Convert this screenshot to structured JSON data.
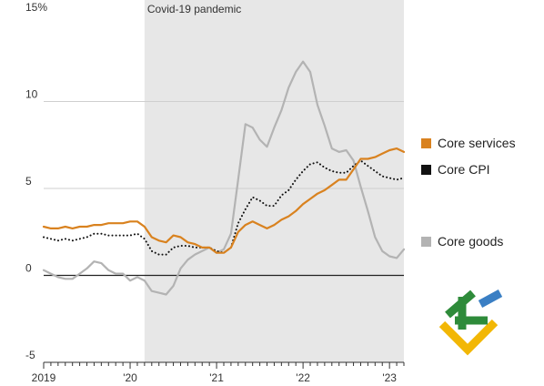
{
  "chart_data": {
    "type": "line",
    "title": "",
    "xlabel": "",
    "ylabel": "",
    "y_unit": "%",
    "ylim": [
      -5,
      15
    ],
    "y_ticks": [
      {
        "value": 15,
        "label": "15%"
      },
      {
        "value": 10,
        "label": "10"
      },
      {
        "value": 5,
        "label": "5"
      },
      {
        "value": 0,
        "label": "0"
      },
      {
        "value": -5,
        "label": "-5"
      }
    ],
    "xlim": [
      "2019-01",
      "2023-03"
    ],
    "x_ticks": [
      {
        "value": "2019-01",
        "label": "2019"
      },
      {
        "value": "2020-01",
        "label": "'20"
      },
      {
        "value": "2021-01",
        "label": "'21"
      },
      {
        "value": "2022-01",
        "label": "'22"
      },
      {
        "value": "2023-01",
        "label": "'23"
      }
    ],
    "annotations": [
      {
        "label": "Covid-19 pandemic",
        "from": "2020-03",
        "to": "2023-03",
        "color": "#e7e7e7"
      }
    ],
    "grid": true,
    "legend_position": "right",
    "series": [
      {
        "name": "Core services",
        "color": "#d9821f",
        "style": "solid",
        "points": [
          [
            "2019-01",
            2.8
          ],
          [
            "2019-02",
            2.7
          ],
          [
            "2019-03",
            2.7
          ],
          [
            "2019-04",
            2.8
          ],
          [
            "2019-05",
            2.7
          ],
          [
            "2019-06",
            2.8
          ],
          [
            "2019-07",
            2.8
          ],
          [
            "2019-08",
            2.9
          ],
          [
            "2019-09",
            2.9
          ],
          [
            "2019-10",
            3.0
          ],
          [
            "2019-11",
            3.0
          ],
          [
            "2019-12",
            3.0
          ],
          [
            "2020-01",
            3.1
          ],
          [
            "2020-02",
            3.1
          ],
          [
            "2020-03",
            2.8
          ],
          [
            "2020-04",
            2.2
          ],
          [
            "2020-05",
            2.0
          ],
          [
            "2020-06",
            1.9
          ],
          [
            "2020-07",
            2.3
          ],
          [
            "2020-08",
            2.2
          ],
          [
            "2020-09",
            1.9
          ],
          [
            "2020-10",
            1.8
          ],
          [
            "2020-11",
            1.6
          ],
          [
            "2020-12",
            1.6
          ],
          [
            "2021-01",
            1.3
          ],
          [
            "2021-02",
            1.3
          ],
          [
            "2021-03",
            1.6
          ],
          [
            "2021-04",
            2.5
          ],
          [
            "2021-05",
            2.9
          ],
          [
            "2021-06",
            3.1
          ],
          [
            "2021-07",
            2.9
          ],
          [
            "2021-08",
            2.7
          ],
          [
            "2021-09",
            2.9
          ],
          [
            "2021-10",
            3.2
          ],
          [
            "2021-11",
            3.4
          ],
          [
            "2021-12",
            3.7
          ],
          [
            "2022-01",
            4.1
          ],
          [
            "2022-02",
            4.4
          ],
          [
            "2022-03",
            4.7
          ],
          [
            "2022-04",
            4.9
          ],
          [
            "2022-05",
            5.2
          ],
          [
            "2022-06",
            5.5
          ],
          [
            "2022-07",
            5.5
          ],
          [
            "2022-08",
            6.1
          ],
          [
            "2022-09",
            6.7
          ],
          [
            "2022-10",
            6.7
          ],
          [
            "2022-11",
            6.8
          ],
          [
            "2022-12",
            7.0
          ],
          [
            "2023-01",
            7.2
          ],
          [
            "2023-02",
            7.3
          ],
          [
            "2023-03",
            7.1
          ]
        ]
      },
      {
        "name": "Core CPI",
        "color": "#111111",
        "style": "dotted",
        "points": [
          [
            "2019-01",
            2.2
          ],
          [
            "2019-02",
            2.1
          ],
          [
            "2019-03",
            2.0
          ],
          [
            "2019-04",
            2.1
          ],
          [
            "2019-05",
            2.0
          ],
          [
            "2019-06",
            2.1
          ],
          [
            "2019-07",
            2.2
          ],
          [
            "2019-08",
            2.4
          ],
          [
            "2019-09",
            2.4
          ],
          [
            "2019-10",
            2.3
          ],
          [
            "2019-11",
            2.3
          ],
          [
            "2019-12",
            2.3
          ],
          [
            "2020-01",
            2.3
          ],
          [
            "2020-02",
            2.4
          ],
          [
            "2020-03",
            2.1
          ],
          [
            "2020-04",
            1.4
          ],
          [
            "2020-05",
            1.2
          ],
          [
            "2020-06",
            1.2
          ],
          [
            "2020-07",
            1.6
          ],
          [
            "2020-08",
            1.7
          ],
          [
            "2020-09",
            1.7
          ],
          [
            "2020-10",
            1.6
          ],
          [
            "2020-11",
            1.6
          ],
          [
            "2020-12",
            1.6
          ],
          [
            "2021-01",
            1.4
          ],
          [
            "2021-02",
            1.3
          ],
          [
            "2021-03",
            1.6
          ],
          [
            "2021-04",
            3.0
          ],
          [
            "2021-05",
            3.8
          ],
          [
            "2021-06",
            4.5
          ],
          [
            "2021-07",
            4.3
          ],
          [
            "2021-08",
            4.0
          ],
          [
            "2021-09",
            4.0
          ],
          [
            "2021-10",
            4.6
          ],
          [
            "2021-11",
            4.9
          ],
          [
            "2021-12",
            5.5
          ],
          [
            "2022-01",
            6.0
          ],
          [
            "2022-02",
            6.4
          ],
          [
            "2022-03",
            6.5
          ],
          [
            "2022-04",
            6.2
          ],
          [
            "2022-05",
            6.0
          ],
          [
            "2022-06",
            5.9
          ],
          [
            "2022-07",
            5.9
          ],
          [
            "2022-08",
            6.3
          ],
          [
            "2022-09",
            6.6
          ],
          [
            "2022-10",
            6.3
          ],
          [
            "2022-11",
            6.0
          ],
          [
            "2022-12",
            5.7
          ],
          [
            "2023-01",
            5.6
          ],
          [
            "2023-02",
            5.5
          ],
          [
            "2023-03",
            5.6
          ]
        ]
      },
      {
        "name": "Core goods",
        "color": "#b3b3b3",
        "style": "solid",
        "points": [
          [
            "2019-01",
            0.3
          ],
          [
            "2019-02",
            0.1
          ],
          [
            "2019-03",
            -0.1
          ],
          [
            "2019-04",
            -0.2
          ],
          [
            "2019-05",
            -0.2
          ],
          [
            "2019-06",
            0.1
          ],
          [
            "2019-07",
            0.4
          ],
          [
            "2019-08",
            0.8
          ],
          [
            "2019-09",
            0.7
          ],
          [
            "2019-10",
            0.3
          ],
          [
            "2019-11",
            0.1
          ],
          [
            "2019-12",
            0.1
          ],
          [
            "2020-01",
            -0.3
          ],
          [
            "2020-02",
            -0.1
          ],
          [
            "2020-03",
            -0.3
          ],
          [
            "2020-04",
            -0.9
          ],
          [
            "2020-05",
            -1.0
          ],
          [
            "2020-06",
            -1.1
          ],
          [
            "2020-07",
            -0.6
          ],
          [
            "2020-08",
            0.4
          ],
          [
            "2020-09",
            0.9
          ],
          [
            "2020-10",
            1.2
          ],
          [
            "2020-11",
            1.4
          ],
          [
            "2020-12",
            1.6
          ],
          [
            "2021-01",
            1.3
          ],
          [
            "2021-02",
            1.5
          ],
          [
            "2021-03",
            2.4
          ],
          [
            "2021-04",
            5.5
          ],
          [
            "2021-05",
            8.7
          ],
          [
            "2021-06",
            8.5
          ],
          [
            "2021-07",
            7.8
          ],
          [
            "2021-08",
            7.4
          ],
          [
            "2021-09",
            8.5
          ],
          [
            "2021-10",
            9.5
          ],
          [
            "2021-11",
            10.8
          ],
          [
            "2021-12",
            11.7
          ],
          [
            "2022-01",
            12.3
          ],
          [
            "2022-02",
            11.7
          ],
          [
            "2022-03",
            9.8
          ],
          [
            "2022-04",
            8.6
          ],
          [
            "2022-05",
            7.3
          ],
          [
            "2022-06",
            7.1
          ],
          [
            "2022-07",
            7.2
          ],
          [
            "2022-08",
            6.6
          ],
          [
            "2022-09",
            5.1
          ],
          [
            "2022-10",
            3.7
          ],
          [
            "2022-11",
            2.2
          ],
          [
            "2022-12",
            1.4
          ],
          [
            "2023-01",
            1.1
          ],
          [
            "2023-02",
            1.0
          ],
          [
            "2023-03",
            1.5
          ]
        ]
      }
    ]
  },
  "logo": {
    "colors": [
      "#2e8b3a",
      "#3a7fc4",
      "#f2b705"
    ]
  }
}
